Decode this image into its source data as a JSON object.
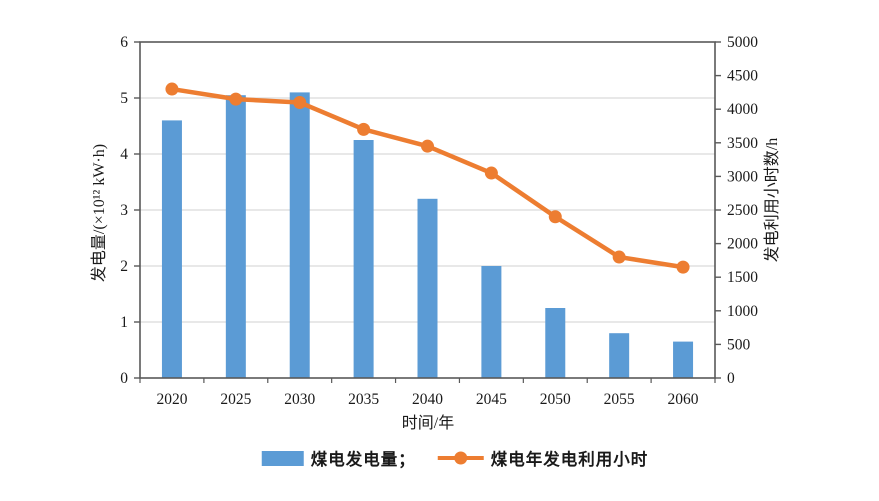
{
  "chart_data": {
    "type": "bar",
    "combo": "bar+line",
    "categories": [
      "2020",
      "2025",
      "2030",
      "2035",
      "2040",
      "2045",
      "2050",
      "2055",
      "2060"
    ],
    "series": [
      {
        "name": "煤电发电量",
        "type": "bar",
        "axis": "left",
        "color": "#5B9BD5",
        "values": [
          4.6,
          5.05,
          5.1,
          4.25,
          3.2,
          2.0,
          1.25,
          0.8,
          0.65
        ]
      },
      {
        "name": "煤电年发电利用小时",
        "type": "line",
        "axis": "right",
        "color": "#ED7D31",
        "marker": "circle",
        "values": [
          4300,
          4150,
          4100,
          3700,
          3450,
          3050,
          2400,
          1800,
          1650
        ]
      }
    ],
    "title": "",
    "xlabel": "时间/年",
    "ylabel_left": "发电量/(×10¹² kW·h)",
    "ylabel_right": "发电利用小时数/h",
    "ylim_left": [
      0,
      6
    ],
    "ytick_step_left": 1,
    "ylim_right": [
      0,
      5000
    ],
    "ytick_step_right": 500,
    "grid": "horizontal",
    "legend_position": "bottom",
    "legend": [
      {
        "label": "煤电发电量；",
        "swatch": "bar"
      },
      {
        "label": "煤电年发电利用小时",
        "swatch": "line-dot"
      }
    ]
  },
  "colors": {
    "bar": "#5B9BD5",
    "line": "#ED7D31",
    "axis": "#595959",
    "gridline": "#D9D9D9",
    "text": "#1a1a1a",
    "background": "#ffffff"
  }
}
